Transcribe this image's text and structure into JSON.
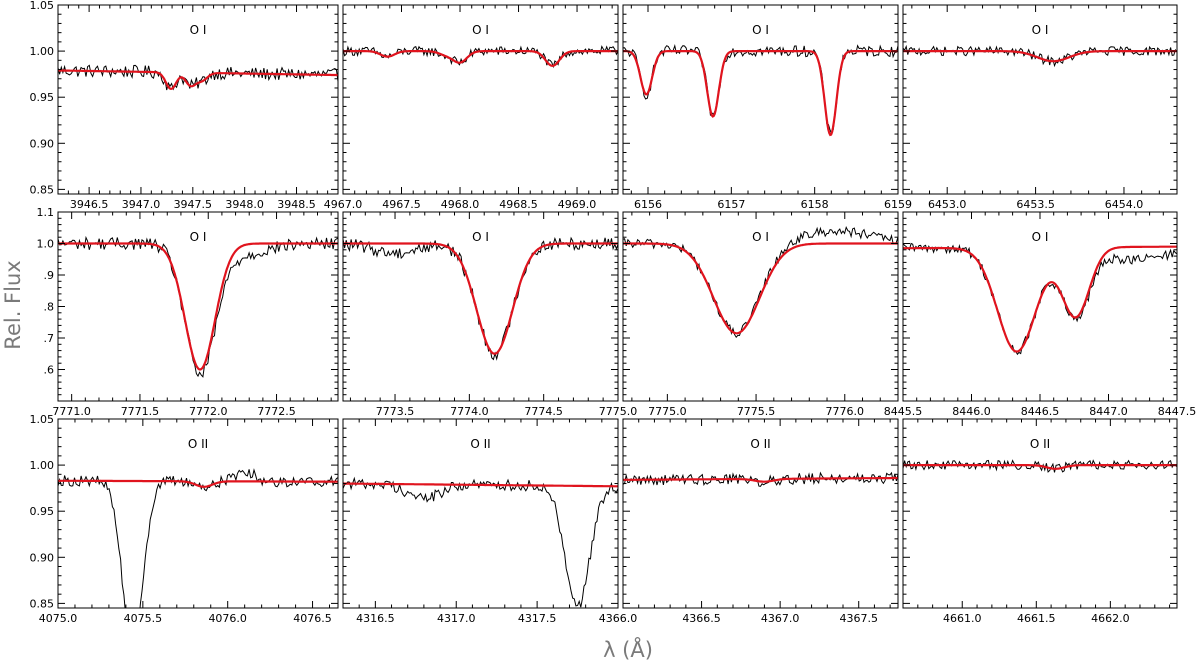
{
  "figure": {
    "ylabel": "Rel. Flux",
    "xlabel": "λ (Å)"
  },
  "colors": {
    "observed": "#000000",
    "model": "#e0141e",
    "axis_label": "#7a7a7a"
  },
  "chart_data": [
    {
      "type": "line",
      "title": "O I",
      "xlim": [
        3946.2,
        3948.9
      ],
      "ylim": [
        0.845,
        1.05
      ],
      "xticks": [
        3946.5,
        3947.0,
        3947.5,
        3948.0,
        3948.5
      ],
      "xtick_labels": [
        "3946.5",
        "3947.0",
        "3947.5",
        "3948.0",
        "3948.5"
      ],
      "yticks": [
        0.85,
        0.9,
        0.95,
        1.0,
        1.05
      ],
      "ytick_labels": [
        "0.85",
        "0.90",
        "0.95",
        "1.00",
        "1.05"
      ],
      "cont_start": 0.979,
      "cont_end": 0.974,
      "noise": 0.007,
      "lines": [
        {
          "center": 3947.29,
          "depth": 0.018,
          "sigma": 0.05
        },
        {
          "center": 3947.48,
          "depth": 0.014,
          "sigma": 0.05
        },
        {
          "center": 3947.59,
          "depth": 0.008,
          "sigma": 0.05
        }
      ],
      "obs_extra": []
    },
    {
      "type": "line",
      "title": "O I",
      "xlim": [
        4967.0,
        4969.35
      ],
      "ylim": [
        0.845,
        1.05
      ],
      "xticks": [
        4967.0,
        4967.5,
        4968.0,
        4968.5,
        4969.0
      ],
      "xtick_labels": [
        "4967.0",
        "4967.5",
        "4968.0",
        "4968.5",
        "4969.0"
      ],
      "yticks": [
        0.85,
        0.9,
        0.95,
        1.0,
        1.05
      ],
      "ytick_labels": [
        "",
        "",
        "",
        "",
        ""
      ],
      "cont_start": 1.0,
      "cont_end": 1.0,
      "noise": 0.005,
      "lines": [
        {
          "center": 4967.38,
          "depth": 0.006,
          "sigma": 0.06
        },
        {
          "center": 4967.88,
          "depth": 0.004,
          "sigma": 0.06
        },
        {
          "center": 4968.0,
          "depth": 0.012,
          "sigma": 0.06
        },
        {
          "center": 4968.79,
          "depth": 0.016,
          "sigma": 0.06
        }
      ],
      "obs_extra": []
    },
    {
      "type": "line",
      "title": "O I",
      "xlim": [
        6155.7,
        6159.0
      ],
      "ylim": [
        0.845,
        1.05
      ],
      "xticks": [
        6156,
        6157,
        6158,
        6159
      ],
      "xtick_labels": [
        "6156",
        "6157",
        "6158",
        "6159"
      ],
      "yticks": [
        0.85,
        0.9,
        0.95,
        1.0,
        1.05
      ],
      "ytick_labels": [
        "",
        "",
        "",
        "",
        ""
      ],
      "cont_start": 1.0,
      "cont_end": 1.0,
      "noise": 0.006,
      "lines": [
        {
          "center": 6155.98,
          "depth": 0.047,
          "sigma": 0.07
        },
        {
          "center": 6156.78,
          "depth": 0.071,
          "sigma": 0.07
        },
        {
          "center": 6158.19,
          "depth": 0.091,
          "sigma": 0.07
        }
      ],
      "obs_extra": []
    },
    {
      "type": "line",
      "title": "O I",
      "xlim": [
        6452.75,
        6454.3
      ],
      "ylim": [
        0.845,
        1.05
      ],
      "xticks": [
        6453.0,
        6453.5,
        6454.0
      ],
      "xtick_labels": [
        "6453.0",
        "6453.5",
        "6454.0"
      ],
      "yticks": [
        0.85,
        0.9,
        0.95,
        1.0,
        1.05
      ],
      "ytick_labels": [
        "",
        "",
        "",
        "",
        ""
      ],
      "cont_start": 1.0,
      "cont_end": 1.0,
      "noise": 0.005,
      "lines": [
        {
          "center": 6453.6,
          "depth": 0.011,
          "sigma": 0.09
        }
      ],
      "obs_extra": []
    },
    {
      "type": "line",
      "title": "O I",
      "xlim": [
        7770.9,
        7772.95
      ],
      "ylim": [
        0.5,
        1.1
      ],
      "xticks": [
        7771.0,
        7771.5,
        7772.0,
        7772.5
      ],
      "xtick_labels": [
        "7771.0",
        "7771.5",
        "7772.0",
        "7772.5"
      ],
      "yticks": [
        0.6,
        0.7,
        0.8,
        0.9,
        1.0,
        1.1
      ],
      "ytick_labels": [
        ".6",
        ".7",
        ".8",
        ".9",
        "1.0",
        "1.1"
      ],
      "cont_start": 1.0,
      "cont_end": 1.0,
      "noise": 0.02,
      "lines": [
        {
          "center": 7771.94,
          "depth": 0.4,
          "sigma": 0.11
        }
      ],
      "obs_extra": [
        {
          "center": 7772.2,
          "amp": -0.04,
          "sigma": 0.2
        }
      ]
    },
    {
      "type": "line",
      "title": "O I",
      "xlim": [
        7773.15,
        7775.0
      ],
      "ylim": [
        0.5,
        1.1
      ],
      "xticks": [
        7773.5,
        7774.0,
        7774.5,
        7775.0
      ],
      "xtick_labels": [
        "7773.5",
        "7774.0",
        "7774.5",
        "7775.0"
      ],
      "yticks": [
        0.6,
        0.7,
        0.8,
        0.9,
        1.0,
        1.1
      ],
      "ytick_labels": [
        "",
        "",
        "",
        "",
        "",
        ""
      ],
      "cont_start": 1.0,
      "cont_end": 1.0,
      "noise": 0.02,
      "lines": [
        {
          "center": 7774.17,
          "depth": 0.35,
          "sigma": 0.12
        }
      ],
      "obs_extra": [
        {
          "center": 7773.5,
          "amp": -0.03,
          "sigma": 0.15
        }
      ]
    },
    {
      "type": "line",
      "title": "O I",
      "xlim": [
        7774.75,
        7776.3
      ],
      "ylim": [
        0.5,
        1.1
      ],
      "xticks": [
        7775.0,
        7775.5,
        7776.0
      ],
      "xtick_labels": [
        "7775.0",
        "7775.5",
        "7776.0"
      ],
      "yticks": [
        0.6,
        0.7,
        0.8,
        0.9,
        1.0,
        1.1
      ],
      "ytick_labels": [
        "",
        "",
        "",
        "",
        "",
        ""
      ],
      "cont_start": 1.0,
      "cont_end": 1.0,
      "noise": 0.015,
      "lines": [
        {
          "center": 7775.39,
          "depth": 0.285,
          "sigma": 0.13
        }
      ],
      "obs_extra": [
        {
          "center": 7775.95,
          "amp": 0.04,
          "sigma": 0.2
        }
      ]
    },
    {
      "type": "line",
      "title": "O I",
      "xlim": [
        8445.5,
        8447.5
      ],
      "ylim": [
        0.5,
        1.1
      ],
      "xticks": [
        8445.5,
        8446.0,
        8446.5,
        8447.0,
        8447.5
      ],
      "xtick_labels": [
        "8445.5",
        "8446.0",
        "8446.5",
        "8447.0",
        "8447.5"
      ],
      "yticks": [
        0.6,
        0.7,
        0.8,
        0.9,
        1.0,
        1.1
      ],
      "ytick_labels": [
        "",
        "",
        "",
        "",
        "",
        ""
      ],
      "cont_start": 0.985,
      "cont_end": 0.99,
      "noise": 0.015,
      "lines": [
        {
          "center": 8446.33,
          "depth": 0.33,
          "sigma": 0.14
        },
        {
          "center": 8446.76,
          "depth": 0.22,
          "sigma": 0.1
        }
      ],
      "obs_extra": [
        {
          "center": 8447.2,
          "amp": -0.04,
          "sigma": 0.25
        }
      ]
    },
    {
      "type": "line",
      "title": "O II",
      "xlim": [
        4075.0,
        4076.65
      ],
      "ylim": [
        0.845,
        1.05
      ],
      "xticks": [
        4075.0,
        4075.5,
        4076.0,
        4076.5
      ],
      "xtick_labels": [
        "4075.0",
        "4075.5",
        "4076.0",
        "4076.5"
      ],
      "yticks": [
        0.85,
        0.9,
        0.95,
        1.0,
        1.05
      ],
      "ytick_labels": [
        "0.85",
        "0.90",
        "0.95",
        "1.00",
        "1.05"
      ],
      "cont_start": 0.983,
      "cont_end": 0.982,
      "noise": 0.006,
      "lines": [
        {
          "center": 4075.86,
          "depth": 0.006,
          "sigma": 0.05
        }
      ],
      "obs_extra": [
        {
          "center": 4075.44,
          "amp": -0.18,
          "sigma": 0.06
        },
        {
          "center": 4076.1,
          "amp": 0.012,
          "sigma": 0.05
        }
      ]
    },
    {
      "type": "line",
      "title": "O II",
      "xlim": [
        4316.3,
        4318.0
      ],
      "ylim": [
        0.845,
        1.05
      ],
      "xticks": [
        4316.5,
        4317.0,
        4317.5,
        4318.0
      ],
      "xtick_labels": [
        "4316.5",
        "4317.0",
        "4317.5",
        "4366.0"
      ],
      "yticks": [
        0.85,
        0.9,
        0.95,
        1.0,
        1.05
      ],
      "ytick_labels": [
        "",
        "",
        "",
        "",
        ""
      ],
      "cont_start": 0.98,
      "cont_end": 0.977,
      "noise": 0.006,
      "lines": [],
      "obs_extra": [
        {
          "center": 4317.75,
          "amp": -0.13,
          "sigma": 0.075
        },
        {
          "center": 4316.8,
          "amp": -0.015,
          "sigma": 0.1
        }
      ]
    },
    {
      "type": "line",
      "title": "O II",
      "xlim": [
        4366.0,
        4367.75
      ],
      "ylim": [
        0.845,
        1.05
      ],
      "xticks": [
        4366.0,
        4366.5,
        4367.0,
        4367.5
      ],
      "xtick_labels": [
        "",
        "4366.5",
        "4367.0",
        "4367.5"
      ],
      "yticks": [
        0.85,
        0.9,
        0.95,
        1.0,
        1.05
      ],
      "ytick_labels": [
        "",
        "",
        "",
        "",
        ""
      ],
      "cont_start": 0.984,
      "cont_end": 0.986,
      "noise": 0.006,
      "lines": [
        {
          "center": 4366.9,
          "depth": 0.003,
          "sigma": 0.06
        }
      ],
      "obs_extra": []
    },
    {
      "type": "line",
      "title": "O II",
      "xlim": [
        4660.6,
        4662.45
      ],
      "ylim": [
        0.845,
        1.05
      ],
      "xticks": [
        4661.0,
        4661.5,
        4662.0
      ],
      "xtick_labels": [
        "4661.0",
        "4661.5",
        "4662.0"
      ],
      "yticks": [
        0.85,
        0.9,
        0.95,
        1.0,
        1.05
      ],
      "ytick_labels": [
        "",
        "",
        "",
        "",
        ""
      ],
      "cont_start": 1.0,
      "cont_end": 1.0,
      "noise": 0.005,
      "lines": [
        {
          "center": 4661.63,
          "depth": 0.004,
          "sigma": 0.06
        }
      ],
      "obs_extra": []
    }
  ]
}
